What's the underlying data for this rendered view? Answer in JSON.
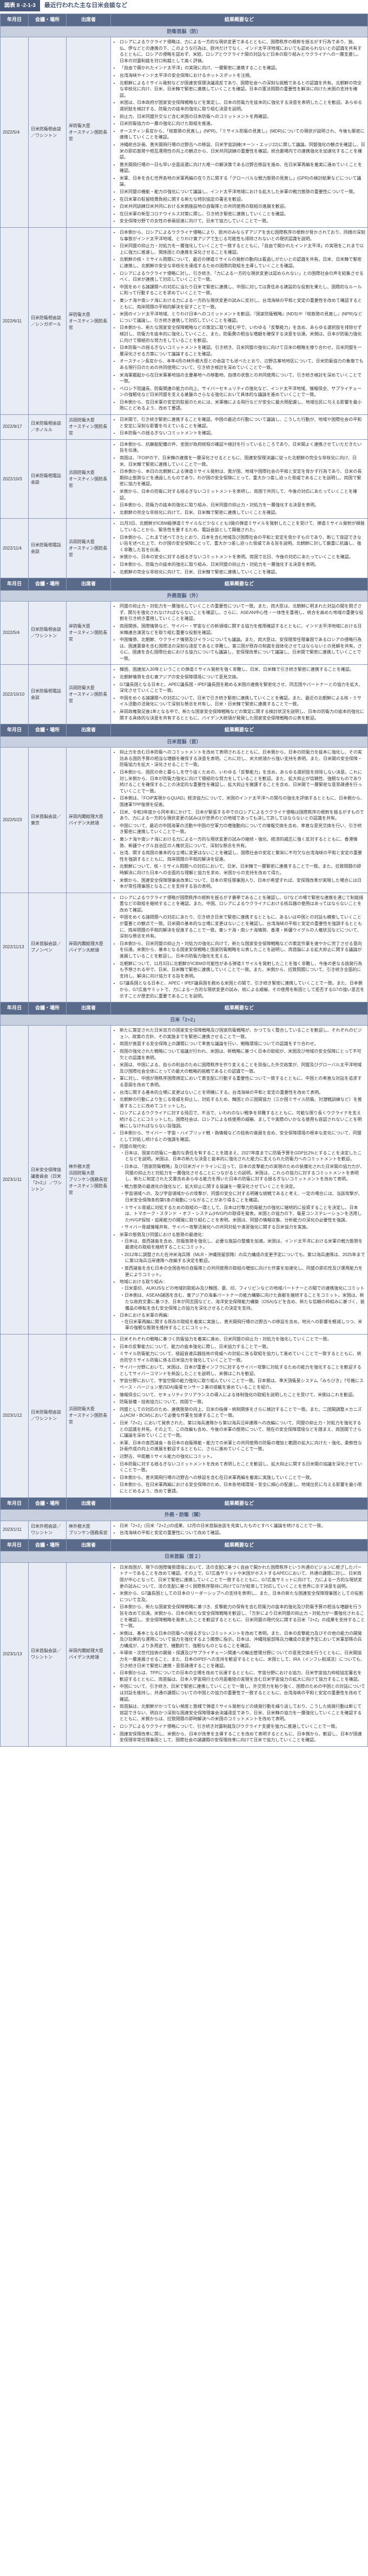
{
  "figure_label": "図表 II -2-1-3",
  "figure_title": "最近行われた主な日米会談など",
  "columns": [
    "年月日",
    "会議・場所",
    "出席者",
    "結果概要など"
  ],
  "section_heads": [
    "防衛首脳（防）",
    "外務首脳（外）",
    "日米首脳（首）",
    "日米「2+2」",
    "外務・防衛（閣）",
    "日米首脳（首２）"
  ],
  "rows": [
    {
      "section": 0,
      "date": "2022/5/4",
      "venue": "日米防衛相会談／ワシントン",
      "attend": "岸防衛大臣\nオースティン国防長官",
      "bullets": [
        "ロシアによるウクライナ侵略は、力による一方的な現状変更であるとともに、国際秩序の根幹を揺るがす行為であり、独、仏、伊などとの連携の下、このような行為は、欧州だけでなく、インド太平洋地域においても認められないとの認識を共有するとともに、ロシアの侵略を認めず、米欧、ロシアとウクライナ間の対話など日本の取り組みとウクライナへの一層支援し、日本の対露制裁を対ロ制裁として高く評価。",
        "「自由で開かれたインド太平洋」の実現に向け、一層緊密に連携することを確認。",
        "台湾海峡やインド太平洋の安全保障におけるホットスポットを注視。",
        "北朝鮮によるミサイル発射などが国連安保理決議違反であり、国際社会への深刻な挑戦であるとの認識を共有。北朝鮮の完全な非核化に向け、日米、日米韓で緊密に連携していくことを確認。日本の憲法問題の重要性を解決に向けた米国の支持を確認。",
        "米国は、日本政府が国家安全保障戦略などを策定し、日本の防衛力を抜本的に強化する決意を表明したことを歓迎。あらゆる選択肢を検討する、防衛力の抜本的強化に取り組む決意を説明。",
        "抑止力、日米同盟外交など含む米国の日本防衛へのコミットメントを再確認。",
        "日米防衛協力の一層の強化に向けた取組を推進。",
        "オースティン長官から、「核態勢の見直し」(NPR)、「ミサイル防衛の見直し」(MDR)についての現状が説明され、今後も緊密に連携していくことを確認。",
        "沖縄統合計画、普天間飛行場の辺野古への移設、日米宇宙訓練(キーン・エッジ22)に関して議論。同盟強化の観点を確認し、日米の即応態勢や相互運用性の向上の観点から、日米共同訓練の重要性を確認。統合劇場内での連携強化を加速化することを確認。",
        "普天間飛行場の一日も早い全面返還に向けた唯一の解決策である辺野古移設を進め、在日米軍再編を着実に進めていくことを確認。",
        "米軍、日本を含む世界各地の米軍再編の在り方に関する「グローバルな戦力態勢の見直し」(GPR)の検討結果などについて議論。",
        "日米同盟の機能・能力の強化について議論し、インド太平洋地域における拡大した米軍の戦力態勢の重要性について一致。",
        "在日米軍の駐留経費負担に関する新たな特別協定の署名を歓迎。",
        "日米共同訓練日米共同における米側施設地の自衛隊との共同使用の取組の進展を歓迎。",
        "在日米軍の新型コロナウイルス対策に関し、引き続き緊密に連携していくことを確認。",
        "安全保障分野での女性の参画促進に向けて、日米で協力していくことで一致。"
      ]
    },
    {
      "section": 0,
      "date": "2022/6/11",
      "venue": "日米防衛相会談／シンガポール",
      "attend": "岸防衛大臣\nオースティン国防長官",
      "bullets": [
        "日本側から、ロシアによるウクライナ侵略により、欧州のみならずアジアを含む国際秩序の根幹が脅かされており、同様の深刻な事態がインド太平洋地域、とりわけ東アジアで生じる可能性も排除されないとの現状認識を説明。",
        "日米同盟の抑止力・対処力を一層強化していくことで一致するとともに、「自由で開かれたインド太平洋」の実現をこれまで以上に強力に推進し、関係国との連携を深化させることを確認。",
        "北朝鮮の核・ミサイル問題について、最近の弾道ミサイルの発射の動向は看過しがたいとの認識を共有。日米、日米韓で緊密に連携し、北朝鮮の安全な非核化を達成するための国際的取組を主導していくことを確認。",
        "ロシアによるウクライナ侵略に対し、引き続き、「力による一方的な現状変更は認められない」との国際社会の声を結集させるべく、日米が連携して対応していくことで一致。",
        "中国をめぐる諸課題への対応に当たり日米で緊密に連携し、中国に対しては責任ある建設的な役割を果たし、国際的なルールに則って行動することを求めていくことで一致。",
        "東シナ海や南シナ海における力による一方的な現状変更の試みに反対し、台湾海峡の平和と安定の重要性を改めて確認するとともに、両岸問題の平和的解決を促すことで一致。",
        "米国のインド太平洋地域、とりわけ日本へのコミットメントを歓迎。『国家防衛戦略』(NDS)や『核態勢の見直し』(NPR)などについて議論し、引き続き連携して対応していくことを確認。",
        "日本側から、新たな国家安全保障戦略などの策定に取り組む中で、いわゆる「反撃能力」を含め、あらゆる選択肢を排除せず検討し、防衛力を抜本的に強化していくこと、また、防衛費の相当な増額を確保する決意を伝達。米側は、日本が防衛力強化に向けて積極的な努力をしていることを歓迎。",
        "日本防衛への揺るぎないコミットメントを確認。引き続き、日米同盟の強化に向けて日米の戦略を擦り合わせ、日米同盟を一層深化させる方策について議論することを確認。",
        "オースティン長官から、本年4月の林外務大臣との会談でも述べたとおり、辺野古基地地区について、日米防衛協力の象徴でもある現行日のための共同使用について、引き続き検討を深めていくことで一致。",
        "米海軍艦艇から在日米軍基地協の主要基地への移動地、自律の状態との共同使用について、引き続き検討を深めていくことで一致。",
        "ペロシ下院議長、防衛関連の能力の向上、サイバーセキュリティの強化など、インド太平洋地域、情報保全、サプライチェーンの強靭化など日米同盟を支える基盤のさらなる強化において具体的な議論を進めていくことで一致。",
        "日本側から、在日米軍の安定的駐留のためには、米軍機による飛行などが安全に最大限配慮し、地域住民に与える影響を最小限にとどめるよう、改めて要請。"
      ]
    },
    {
      "section": 0,
      "date": "2022/9/17",
      "venue": "日米防衛相会談／ホノルル",
      "attend": "浜田防衛大臣\nオースティン国防長官",
      "bullets": [
        "日米間で、引き続き緊密に連携することを確認。中国の最近の行動について議論し、こうした行動が、地域や国際社会の平和と安定に深刻な影響を与えていることを確認。",
        "日本防衛への揺るぎないコミットメントを確認。"
      ]
    },
    {
      "section": 0,
      "date": "2022/10/3",
      "venue": "日米防衛相電話会談",
      "attend": "浜田防衛大臣\nオースティン国防長官",
      "bullets": [
        "日本側から、抗静脈配備の件、金国が政府統程の確認や検討を行っているところであり、日米間よく連携させていただきたい旨を伝達。",
        "両国は、『FOIPの下、日米韓の連携を一層深化させるとともに、国連安保理決議に従った北朝鮮の完全な非核化に向け、日米、日米韓で緊密に連携していくことで一致。",
        "日本側から、本日の北朝鮮による弾道ミサイル発射は、我が国、地域や国際社会の平和と安定を脅かす行為であり、日米の長期抑止態勢などを通過したものであり、わが国の安全保障にとって、重大かつ差し迫った脅威であることを説明し、両国で緊密に協力を確認。",
        "米側から、日本の防衛に対する揺るぎないコミットメントを表明し、両国で共同して、今後の対応にあたっていくことを確認。",
        "日本側から、防衛力の抜本的強化に取り組み、日米同盟の抑止力・対処力を一層強化する決意を表明。",
        "北朝鮮の完全な非核化に向けて、日米、日米韓で緊密に連携していくことを確認。"
      ]
    },
    {
      "section": 0,
      "date": "2022/11/4",
      "venue": "日米防衛相電話会談",
      "attend": "浜田防衛大臣\nオースティン国防長官",
      "bullets": [
        "11月3日、北朝鮮がICBM級弾道ミサイルなど少なくとも3発の弾道ミサイルを発射したことを受けて、弾道ミサイル発射が頻発していることから、緊急性を要するため、電話会談として開催された。",
        "日本側から、これまで述べてきたとおり、日本を含む地域及び国際社会の平和と安定を脅かすものであり、断じて容認できない旨を述べた上で、わが国の安全保障にとって、重大かつ差し迫った脅威である旨を説明。北朝鮮に対して厳重に抗議し、強く非難した旨を伝達。",
        "米側から、日本の安全に対する揺るぎないコミットメントを表明。両国で北日、今後の対応にあたっていくことを確認。",
        "日本側から、防衛力の抜本的強化に取り組み、日米同盟の抑止力・対処力を一層強化する決意を表明。",
        "北朝鮮の完全な非核化に向けて、日米、日米韓で緊密に連携していくことを確認。"
      ]
    },
    {
      "section": 1,
      "date": "2022/5/4",
      "venue": "日米防衛相会談／ワシントン",
      "attend": "岸防衛大臣\nオースティン国防長官",
      "bullets": [
        "同盟の抑止力・対処力を一層強化していくことの重要性について一致。また、両大臣は、北朝鮮に明まれた対話の間を閉ざさず、関与を強化されなければならないことを確認し、さらに、ASEAN中心性・一体性を重視し、統合を高めた地域の重要な役割を引き続き重視していくことを確認。",
        "両国関係、国際情勢など、サイバー・宇宙などの新領域に関する協力を推用確認するとともに、インド太平洋地域における日米韓連合演習などを取り組む重要な役割を確認。",
        "中国情勢、北朝鮮、ウクライナ情勢及びイランについても議論。また、両大臣は、安保理常任理事国であるロシアの侵略行為は、国連憲章を含む国際法の深刻な違反であると非難し、第三国が既存の制裁を弱体化させてはならないとの見解を共有。さらに、国連を含む国際社会における協力についても議論し、安保理改革について議論し、日米間で緊密に連携していくことで一致。"
      ]
    },
    {
      "section": 1,
      "date": "2022/10/10",
      "venue": "日米防衛相電話会談",
      "attend": "浜田防衛大臣\nオースティン国防長官",
      "bullets": [
        "韓国、国連加入30年ということの弾道ミサイル発射を強く非難し、日米、日米韓で引き続き緊密に連携することを確認。",
        "北朝鮮情勢を含む東アジアの安全保障環境について意見交換。",
        "G7議長国となる日本と、APEC議長国・IPEF議長国を務める米国の連携を緊密化させ、同志国やパートナーとの協力を拡大、深化させていくことで一致。",
        "中国をめぐる諸課題への対応について、日米で引き続き緊密に連携していくことを確認。また、最近の北朝鮮による核・ミサイル活動の活発化について深刻な懸念を共有し、日米・日米韓で緊密に連携することで一致。",
        "岸田政権発足後1年となる中で、新たな国家安全保障戦略などの策定に関する検討状況を説明し、日本の防衛力の抜本的強化に関する具体的な決意を共有するとともに、バイデン大統領が発発した国家安全保障戦略の公表を歓迎。"
      ]
    },
    {
      "section": 2,
      "date": "2022/5/23",
      "venue": "日米首脳会談／東京",
      "attend": "岸田内閣総理大臣\nバイデン大統領",
      "bullets": [
        "抑止力を含む日本防衛へのコミットメントを改めて表明されるとともに、日本側から、日本の防衛力を抜本に強化し、その実効ある国防予算の相当な増額を確保する決意を表明。これに対し、米大統領から強い支持を表明。また、日米間の安全保障・防衛協力を拡大・深化させることで一致。",
        "日本側から、国民の命と暮らしを守り抜くための、いわゆる「反撃能力」を含め、あらゆる選択肢を排除しない決意。これに対し米側から、日本が防衛力強化に向けて積極的な努力をしていることを歓迎。また、拡大抑止が信頼性、強靭なものであり続けることを確保することの決定的な重要性を確認し、拡大抑止を擁護することを含め、日米間で一層緊密な意思疎通を行っていくことで一致。",
        "日本側は、『FOIP実現からQUAD』経済協力について、米国のインド太平洋への関与の強化を評価するとともに、日本側から、国連軍TPP復帰を促進。",
        "日米、令和3年度から同年末にかけて、日本が緊張する中でのロシアによるウクライナ侵略は国際秩序の根幹を揺るがすものであり、力による一方的な現状変更の試みはが世界のどの地域であっても決して許してはならないとの認識を共有。",
        "中国について、最近の中国海軍の活動や中国の空軍力の増強動向についての情報交換を含め、率直な意見交換を行い、引き続き緊密に連携していくことで一致。",
        "東シナ海や南シナ海における力による一方的な現状変更の試みの継続・強化、経済的威圧に強く反対するとともに、香港情勢、新疆ウイグル自治区の人権状況について、深刻な懸念を共有。",
        "台湾、関する両国の基本的な立場に変更はないことを確認し、国際社会の安定と繁栄に不可欠な台湾海峡の平和と安定の重要性を強調するとともに、両岸問題の平和的解決を促進。",
        "北朝鮮について、核・ミサイル問題への対応において、日米、日米韓で一層緊密に連携することで一致。また、拉致問題の即時解決に向けた日本への全面的な理解と協力を求め、米国からの支持を改めて得た。",
        "米側から、国連安全保障理事会改革について、日本の常任理事国入り、日本が希望すれば、安保理改革が実現した場合には日本が常任理事国となることを支持する旨の表明。"
      ]
    },
    {
      "section": 2,
      "date": "2022/11/13",
      "venue": "日米首脳会談／プノンペン",
      "attend": "岸田内閣総理大臣\nバイデン大統領",
      "bullets": [
        "ロシアによるウクライナ侵略が国際秩序の根幹を揺るがす暴挙であることを確認し、G7などの場で緊密な連携を通じて制裁措置などの取組を継続することを確認。また、中国、ロシアによるウクライナにおける核兵器の使用はあってはならないことを改めて確認。",
        "中国をめぐる諸問題への対応にあたり、引き続き日米で緊密に連携するとともに、あるいは中国との対話も模索していくことが重要との観点で一致。日米間の基本的な立場に変更はないことを確認し、台湾海峡の平和と安定の重要性を強調するとともに、両岸問題の平和的解決を促進することで一致。東シナ海・南シナ海情勢、香港・新疆ウイグルの人権状況などについて、深刻な懸念を共有。",
        "日本側から、日米同盟の抑止力・対処力の強化に向けて、新たな国家安全保障戦略などの策定作業を速やかに完了させる意向を伝達。米側から、基本となる国家安保戦略と国家防衛戦略を公表したことを説明し、両首脳による拡大抑止に関する議論が進展していることを歓迎し、日本の防衛力強化を支える。",
        "北朝鮮について、11月3日に北朝鮮がICBMの可能性がある弾道ミサイルを発射したことを強く非難し、今後の更なる挑発行為も予想される中で、日米、日米韓で緊密に連携していくことで一致。また、米側から、拉致問題について、引き続き全面的に支持し、解決に向け協力する旨を表明。",
        "G7議長国となる日本と、APEC・IPEF議長国を務める米国との間で、引き続き緊密に連携していくことで一致。また、日本側から、G7広島サミットで、力による一方的な現状変更の試み、核による威嚇、その使用を断固として拒否するG7の強い意志を示すことが歴史的に重要であることを説明。"
      ]
    },
    {
      "section": 3,
      "date": "2023/1/11",
      "venue": "日米安全保障協議委員会（日米「2+2」）／ワシントン",
      "attend": "林外務大臣\n浜田防衛大臣\nブリンケン国務長官\nオースティン国防長官",
      "bullets": [
        "新たに策定された日米双方の国家安全保障戦略及び国家防衛戦略が、かつてなく整合していることを歓迎し、それぞれのビジョン、政策の方針、その実施までを緊密に連携させることで一致。",
        "両国が直面する安全保障上の課題について率直な議論を行い、戦略環境についての認識をすり合わせ。",
        "両国の強化された戦略について協議が行われ、米国は、新戦略に基づく日本の取組が、米国及び地域の安全保障にとって不可欠との認識を表明。",
        "米国は、中国による、自らの利益のために国際秩序を作り変えることを目指した外交政策が、同盟及びグローバル太平洋地域及び国際社会全体にとっての最大の戦略的挑戦であるとの認識で一致。",
        "軍に対し、中国が現秩序国際規定において責支配に行動する重要性について一致するとともに、中国との率直な対話を追求する意図を改めて表明。",
        "台湾に関する基本的立場に変更はないことを明確にする。台湾海峡の平和と安定の重要性を改めて表明。",
        "北朝鮮の行動により生じる脅威を抑止し、対処するため、韓国との三国間協力（三か国ミサイル防衛、対潜戦訓練など）を推進することに改めてコミットした。",
        "ロシアによるウクライナに対する残忍で、不当で、いわれのない戦争を非難するとともに、可能な限り長くウクライナを支え続けることにコミットした。国際社会は、ロシアによる核使用の威嚇、ましてや実際のいかなる使用も容認されないことを明確にしなければならない旨強調。",
        "日本側から、サイバー・宇宙・ハイブリッド戦・偽情報などの技術の進展を含め、安全保障環境の根本な変化について、同盟として対処し続けるとの強調を確認。",
        "同盟の現代化：",
        [
          "日本は、国家の防衛に一義的な責任を有することを踏まえ、2027年度までに防衛予算をGDP比2%とすることを決定したことなどを説明。米国は、日本の新たな決意と抜本的に強化された能力に支えられた防衛力へのコミットメントを歓迎。",
          "日本は、「国家防衛戦略」及び日米ガイドラインに沿って、日本の反撃能力の実現のための装備化された日米間の協力力が、同盟の抑止力と対処力を一層強化させることにつながるとの説明。米国は、これらの協力に対するコミットメントを表明し、新たに制定された文書含めあらゆる能力を用いた日本の防衛に対する揺るぎないコミットメントを改めて表明。",
          "戦力態勢の最適化の強化など、拡大抑止に関する協議を一層深化させていくことを決定。",
          "宇宙領域への、及び宇宙領域からの攻撃が、同盟の安全に対する明確な挑戦であると考え、一定の場合には、当該攻撃が、日米安全保障条約第5条の発動につながることがあり得ることを確認。",
          "ミサイル脅威に対処するための取組の一環として、日本は打撃力防衛能力の強化に継続的に投資することを決定し、日本は、トマホーク・スタンド ・オフ・システム(HVGP)の取得を発表。米国との協力の下、衛星コンステレーションを活用したHVGP探知・追尾能力の開発に取り組むことを表明。米国は、同盟の情報収集、分析能力の深化の必要性を強調。",
          "サイバー脅威情報共有、サイバー攻撃活発化への共同対処や演習強化に関する日米協力を実施。"
        ],
        "米軍の態勢及び同盟における態勢の最適化：",
        [
          "日本は、南西諸島を含め、防衛態勢を強化し、必要な施設の整備を加速。米国は、インド太平洋における米軍の戦力態勢を最適化の取組を継続することにコミット。",
          "2012年に調整された在沖米海兵隊（MLR・沖縄残留部隊）の兵力構成の変更予定についても、第12海兵連隊は、2025年までに第12海兵沿岸連隊へ改編する決定を歓迎。",
          "南西諸島を含む日本の全国各地の自衛隊との共同使用の取組の増加に向けた作業を加速化し、同盟の即応性及び運用能力を更によりコミット。"
        ],
        "地域における取り組み：",
        [
          "日米豪印、AUKUSなどの地域的取組み及び韓国、豪、印、フィリピンなどの地域パートナーとの間での連携強化にコミット",
          "日本側は、ASEAN諸国を含む、東アジアの海事パートナーの能力構築に向けた貢献を継続することをコミット。米国は、新たな政府文書に基づき、日本が同志国などと、海洋安全保障能力構築（OSA)などを含め、新たな信頼の枠組みに基づく、装備品の移転を含む安全保障上の協力を深化させるとの決定を支持。"
        ],
        "日本における米軍の再編：",
        [
          "在日米軍再編に関する既存の取組を着実に実施し、普天間飛行場の辺野古への移設を含め、地元への影響を軽減しつつ、米軍の強靭な態勢を維持することにコミット。"
        ]
      ]
    },
    {
      "section": 3,
      "date": "2023/1/12",
      "venue": "日米防衛相会談／ワシントン",
      "attend": "浜田防衛大臣\nオースティン国防長官",
      "bullets": [
        "日米それぞれの戦略に基づく防衛協力を着実に進め、日米同盟の抑止力・対処力を強化していくことで一致。",
        "日本の反撃能力について、能力の抜本強化に際し、日米協力することで一致。",
        "ミサイル防衛能力について、極超音速兵器技術の脅威への対処に係る取組を協力して進めていくことで一致するとともに、統合防空ミサイル防衛に係る日米協力を強化していくことで一致。",
        "サイバー分野において、米国は、日本が重要インフラに対するサイバー攻撃に対処するための能力を強化することを歓迎するとしてサイバーコマンドを新設したことを説明し、米側はこれを歓迎。",
        "宇宙分野において、宇宙空間の能力強化に取り組んでいくことで一致。日本側は、準天頂衛星システム「みちびき」7号機にスペース・バージョン室(SDA)衛星センサー２基の搭載を進めていることを紹介。",
        "情報保全について、セキュリティクリアランスの導入による体制強化の取組を説明したことを受けて、米側はこれを歓迎。",
        "防衛装備・技術協力について、両国で一致。",
        "同盟としての対応のため、連携態勢の向上、日米の指揮・統制関係をさらに検討することで一致。また、二国間調整メカニズム(ACM・BCM)において必要な作業を加速することで一致。",
        "日米「2+2」において発表された、第12海兵連隊から第12海兵沿岸連隊への改編について、同盟の抑止力・対処力を強化するとの認識を共有。その上で、この改編も含め、今後の米軍の態勢について、現在の安全保障環境などを踏まえ、両国間でさらに議論を深めていくことで一致。",
        "米軍、日本の南西諸島・各日本の自衛隊能・能力での米軍との共同使用の防衛の増加と範囲の拡大に向けた・強化、柔軟性な計画作成の向上の進展を歓迎するとともに、さらに進めていくことで一致。",
        "辺野古、中距離ミサイル能力の強化にコミット。",
        "日本防衛に対する揺るぎないコミットメントを改めて表明したことを歓迎し、拡大抑止に関する日米間の協議を深化させていくことで一致。",
        "日本側から、普天間飛行場の辺野古への移設を含む在日米軍再編を着実に実施していくことで一致。",
        "日本側から、在日米軍再編における安全保障のため、日本各地域環境・安全に細心の配慮し、地域住民に与える影響を最小限にとどめるよう、改めて要請。"
      ]
    },
    {
      "section": 4,
      "date": "2023/1/11",
      "venue": "日米外相会談／ワシントン",
      "attend": "林外務大臣\nブリンケン国務長官",
      "bullets": [
        "日米「2+2」(日米「2+2」)の成果、12月の日米首脳会談を充実したものとすべく議論を続けることで一致。",
        "台湾海峡の平和と安定の重要性について改めて確認。"
      ]
    },
    {
      "section": 5,
      "date": "2023/1/13",
      "venue": "日米首脳会談／ワシントン",
      "attend": "岸田内閣総理大臣\nバイデン大統領",
      "bullets": [
        "日米両国が、現下の国際情勢環境において、法の支配に基づく自由で開かれた国際秩序という共通のビジョンに根ざしたパートナーであることを改めて確認。その上で、G7広島サミットや米国がホストするAPECにおいて、共通の課題に対し、日米両国が中心となって、日米で緊密に連携していくことで一致するとともに、G7広島サミットに向けて、力による一方的な現状変更の試みについて、法の支配に基づく国際秩序堅持に向けてG7が結束して対応していくことを世界に示す決意を説明。",
        "米側から、G7議長国としての日本のリーダーシップへの支持を表明し、また、日本の新たな国連安全保障理事国としての役割について言及。",
        "日本側から、新たな国家安全保障戦略に基づき、反撃能力の保有を含む防衛力の抜本的強化及び防衛予算の相当な増額を行う旨を改めて伝達。米側から、日本の新たな安全保障戦略を歓迎し、「方針により日米同盟の抑止力・対処力が一層強化されることを確認し、安全保障戦略を発表したことを歓迎するとともに、日米同盟の現代化に関する日米「2+2」の成果を支持することで一致。",
        "米側は、基本となる日本の防衛への揺るぎないコミットメントを改めて表明。また、日本の反撃能力及びその他の能力の開発及び効果的な運用について協力を強化するよう閣僚に指示。日本は、沖縄残留部隊兵力構成の変更予定において米軍部隊の兵力構成が、より多用途で、機動的で、強靭なものとなることを確認。",
        "半導体・次世代技術の開発・保護及びサプライチェーン関連への輸出管理分野についての意見交換を行うとともに、日米間協力を一層進展させること、また、日本のIPEFへの支持を歓迎するとともに、米国として、IRA（インフレ削減法）についても、引き続き日米で緊密に連携・意思疎通することを確認。",
        "日本側からは、TPPについての日本の立場を改めて伝達するとともに、宇宙分野における協力、日米宇宙協力枠組協定署名を歓迎するとともに、両首脳は、日本人宇宙飛行士の月面着陸の実現を含む日米宇宙協力の拡大に向けて協力することを確認。",
        "中国について、引き続き、日米で緊密に連携していくことで一致し、外交努力を粘り強く、国際のための中国との対話については対話を維持し、共通の課題についての中国との協力の重要性で一致するとともに、台湾海峡の平和と安定の重要性を改めて確認。",
        "両首脳は、北朝鮮がかつてない頻度と態様で弾道ミサイル発射などの挑発行動を繰り返しており、こうした挑発行動は断じて容認できない、明白かつ深刻な国連安全保障理事会決議違反であり、日米、日米韓の協力を一層強化していくことを確認するとともに、米側からは、拉致問題の即時解決への米国のコミットメントを改めて表明。",
        "ロシアによるウクライナ侵略について、引き続き対露制裁及びウクライナ支援を強力に推進していくことで一致。",
        "国連安保理改革に関し、米側から、日本が改革を主導することを改めて表明するとともに、日本側から、歓迎し、日本が国連安保理非常任理事国として、国際社会の諸課題の安保理改革に向けて日米で協力していくことを確認。"
      ]
    }
  ]
}
